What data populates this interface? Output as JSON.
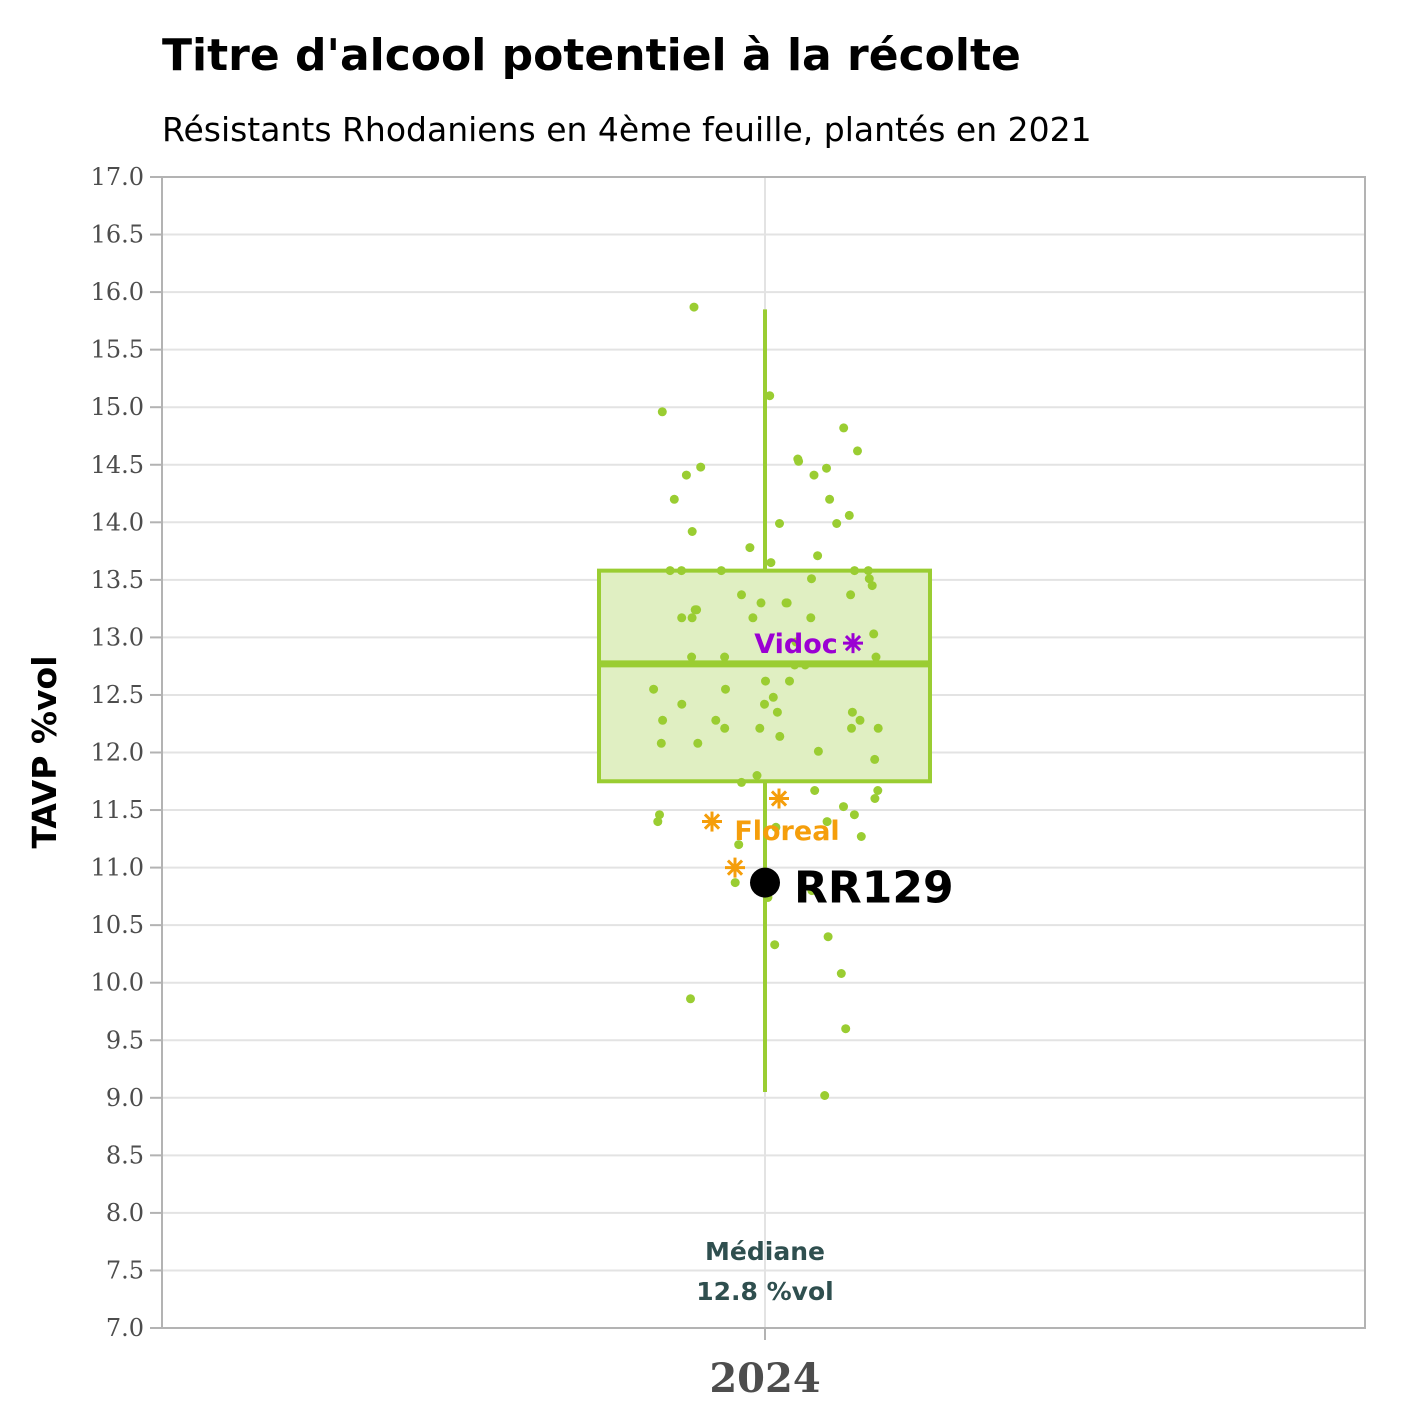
{
  "chart_data": {
    "type": "box",
    "title": "Titre d'alcool potentiel à la récolte",
    "subtitle": "Résistants Rhodaniens en 4ème feuille, plantés en 2021",
    "ylabel": "TAVP %vol",
    "xlabel": "",
    "categories": [
      "2024"
    ],
    "ylim": [
      7.0,
      17.0
    ],
    "yticks": [
      "7.0",
      "7.5",
      "8.0",
      "8.5",
      "9.0",
      "9.5",
      "10.0",
      "10.5",
      "11.0",
      "11.5",
      "12.0",
      "12.5",
      "13.0",
      "13.5",
      "14.0",
      "14.5",
      "15.0",
      "15.5",
      "16.0",
      "16.5",
      "17.0"
    ],
    "grid": true,
    "box": {
      "min": 9.05,
      "q1": 11.75,
      "median": 12.77,
      "q3": 13.58,
      "max": 15.85
    },
    "median_annotation": {
      "line1": "Médiane",
      "line2": "12.8 %vol"
    },
    "highlight": {
      "name": "RR129",
      "value": 10.87
    },
    "references": [
      {
        "name": "Vidoc",
        "values": [
          12.95
        ],
        "color": "#9b00d3"
      },
      {
        "name": "Floreal",
        "values": [
          11.6,
          11.4,
          11.0
        ],
        "color": "#f59e0b"
      }
    ],
    "points": [
      15.87,
      15.1,
      14.96,
      14.82,
      14.62,
      14.47,
      14.41,
      14.55,
      14.53,
      14.48,
      14.41,
      14.2,
      14.2,
      14.06,
      13.99,
      13.99,
      13.92,
      13.78,
      13.71,
      13.65,
      13.58,
      13.58,
      13.58,
      13.58,
      13.58,
      13.51,
      13.51,
      13.45,
      13.37,
      13.37,
      13.3,
      13.3,
      13.3,
      13.24,
      13.24,
      13.17,
      13.17,
      13.17,
      13.17,
      13.03,
      12.96,
      12.83,
      12.83,
      12.83,
      12.76,
      12.76,
      12.62,
      12.62,
      12.55,
      12.55,
      12.48,
      12.42,
      12.42,
      12.35,
      12.35,
      12.28,
      12.28,
      12.28,
      12.21,
      12.21,
      12.21,
      12.21,
      12.14,
      12.08,
      12.08,
      12.01,
      11.94,
      11.8,
      11.74,
      11.67,
      11.67,
      11.6,
      11.53,
      11.46,
      11.46,
      11.4,
      11.4,
      11.35,
      11.27,
      11.2,
      10.87,
      10.8,
      10.74,
      10.4,
      10.33,
      10.08,
      9.86,
      9.6,
      9.02
    ],
    "colors": {
      "box_line": "#9acd32",
      "box_fill": "#e0efc2",
      "points": "#9acd32",
      "highlight": "#000000",
      "median_text": "#2f4f4f"
    }
  }
}
